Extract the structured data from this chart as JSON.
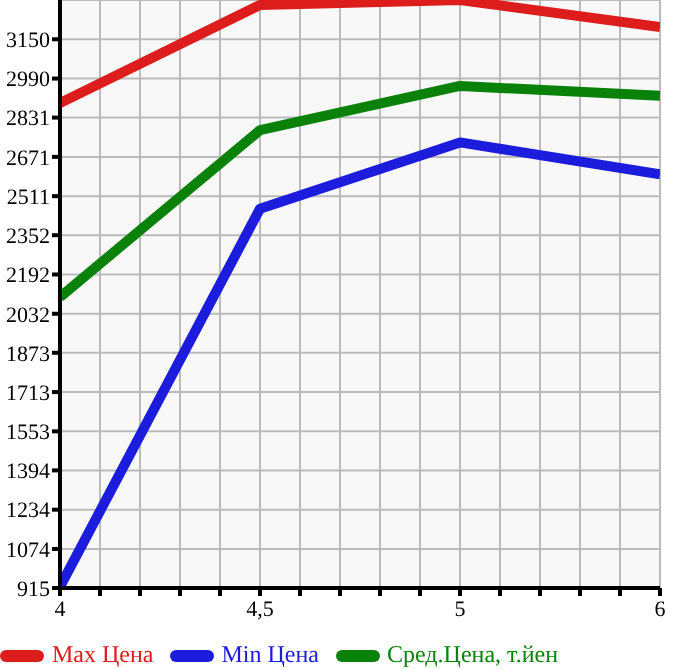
{
  "chart_data": {
    "type": "line",
    "categories": [
      "4",
      "4,5",
      "5",
      "6"
    ],
    "series": [
      {
        "name": "Max Цена",
        "color": "#dd1c1c",
        "values": [
          2890,
          3290,
          3310,
          3200
        ]
      },
      {
        "name": "Min Цена",
        "color": "#1c1cdd",
        "values": [
          920,
          2460,
          2730,
          2600
        ]
      },
      {
        "name": "Сред.Цена, т.йен",
        "color": "#0a820a",
        "values": [
          2100,
          2780,
          2960,
          2920
        ]
      }
    ],
    "ylim": [
      915,
      3310
    ],
    "yticks": [
      915,
      1074,
      1234,
      1394,
      1553,
      1713,
      1873,
      2032,
      2192,
      2352,
      2511,
      2671,
      2831,
      2990,
      3150
    ],
    "grid": true,
    "legend": "bottom",
    "marker": "none",
    "line_style": "solid"
  }
}
